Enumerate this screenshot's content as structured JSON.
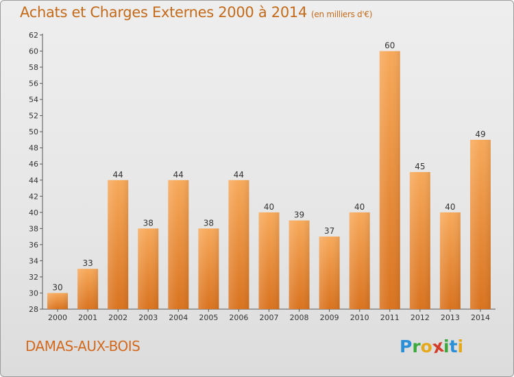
{
  "header": {
    "title": "Achats et Charges Externes 2000 à 2014",
    "subtitle": "(en milliers d'€)"
  },
  "footer": {
    "commune": "DAMAS-AUX-BOIS",
    "logo_letters": [
      "P",
      "r",
      "o",
      "x",
      "i",
      "t",
      "i"
    ],
    "logo_colors": [
      "#2a8fd6",
      "#3aa83a",
      "#e5a81a",
      "#d43c2a",
      "#3aa83a",
      "#2a8fd6",
      "#e5a81a"
    ]
  },
  "colors": {
    "bar_top": "#f7a95a",
    "bar_bottom": "#d9731f",
    "accent": "#c46a1b"
  },
  "chart_data": {
    "type": "bar",
    "categories": [
      "2000",
      "2001",
      "2002",
      "2003",
      "2004",
      "2005",
      "2006",
      "2007",
      "2008",
      "2009",
      "2010",
      "2011",
      "2012",
      "2013",
      "2014"
    ],
    "values": [
      30,
      33,
      44,
      38,
      44,
      38,
      44,
      40,
      39,
      37,
      40,
      60,
      45,
      40,
      49
    ],
    "title": "Achats et Charges Externes 2000 à 2014",
    "subtitle": "(en milliers d'€)",
    "xlabel": "",
    "ylabel": "",
    "ylim": [
      28,
      62
    ],
    "yticks": [
      28,
      30,
      32,
      34,
      36,
      38,
      40,
      42,
      44,
      46,
      48,
      50,
      52,
      54,
      56,
      58,
      60,
      62
    ],
    "grid": false,
    "data_labels": true
  }
}
